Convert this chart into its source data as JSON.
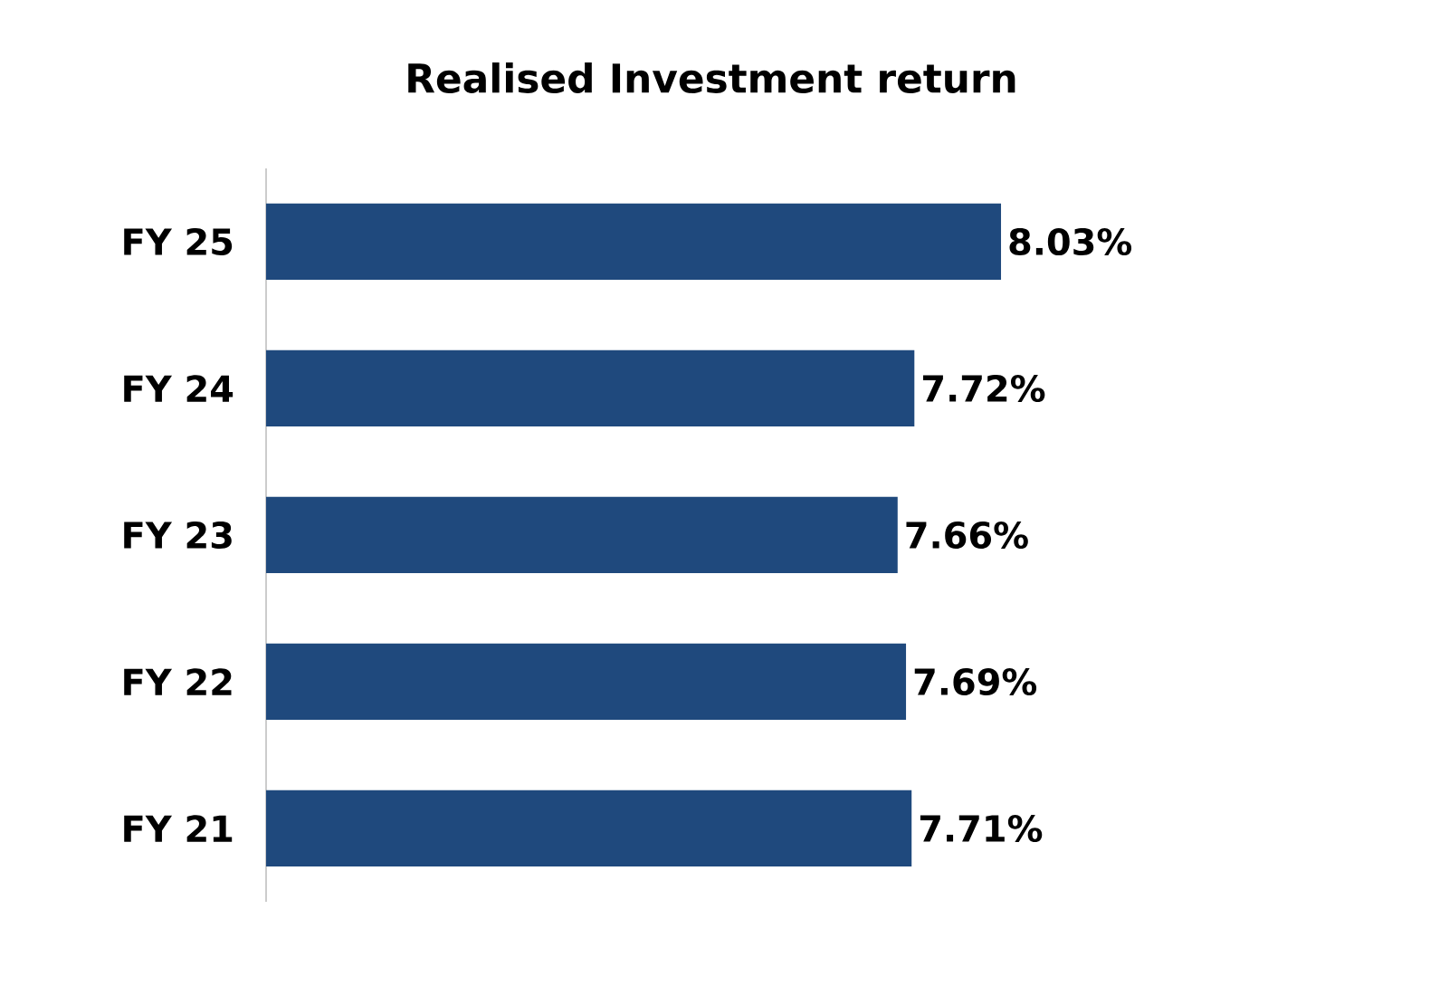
{
  "chart_data": {
    "type": "bar",
    "orientation": "horizontal",
    "title": "Realised Investment return",
    "categories": [
      "FY 25",
      "FY 24",
      "FY 23",
      "FY 22",
      "FY 21"
    ],
    "values": [
      8.03,
      7.72,
      7.66,
      7.69,
      7.71
    ],
    "value_labels": [
      "8.03%",
      "7.72%",
      "7.66%",
      "7.69%",
      "7.71%"
    ],
    "color": "#1f497d",
    "xlim": [
      5.4,
      8.03
    ],
    "tick_labels": "y"
  }
}
